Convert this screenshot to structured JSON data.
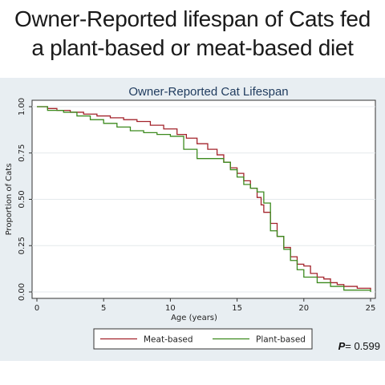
{
  "headline": {
    "line1": "Owner-Reported lifespan of Cats fed",
    "line2": "a plant-based or meat-based diet"
  },
  "p_value": {
    "label": "P",
    "text": "= 0.599"
  },
  "colors": {
    "panel_background": "#e8eef2",
    "plot_background": "#ffffff",
    "title_color": "#1f3b5e",
    "meat_based": "#a3232b",
    "plant_based": "#3c8a1e"
  },
  "chart_data": {
    "type": "line",
    "title": "Owner-Reported Cat Lifespan",
    "xlabel": "Age (years)",
    "ylabel": "Proportion of Cats",
    "xlim": [
      0,
      25
    ],
    "ylim": [
      0,
      1
    ],
    "xticks": [
      0,
      5,
      10,
      15,
      20,
      25
    ],
    "yticks": [
      0,
      0.25,
      0.5,
      0.75,
      1
    ],
    "ytick_labels": [
      "0.00",
      "0.25",
      "0.50",
      "0.75",
      "1.00"
    ],
    "grid": true,
    "legend_position": "bottom",
    "series": [
      {
        "name": "Meat-based",
        "color": "#a3232b",
        "x": [
          0,
          0.8,
          1.5,
          2.5,
          3.5,
          4.5,
          5.5,
          6.5,
          7.5,
          8.5,
          9.5,
          10.5,
          11.2,
          12,
          12.8,
          13.5,
          14,
          14.5,
          15,
          15.5,
          16,
          16.5,
          16.8,
          17,
          17.5,
          18,
          18.5,
          19,
          19.5,
          20,
          20.5,
          21,
          21.5,
          22,
          22.5,
          23,
          24,
          25
        ],
        "y": [
          1,
          0.99,
          0.98,
          0.97,
          0.96,
          0.95,
          0.94,
          0.93,
          0.92,
          0.9,
          0.88,
          0.85,
          0.83,
          0.8,
          0.77,
          0.74,
          0.7,
          0.67,
          0.64,
          0.6,
          0.56,
          0.51,
          0.47,
          0.43,
          0.37,
          0.3,
          0.24,
          0.19,
          0.15,
          0.14,
          0.1,
          0.08,
          0.07,
          0.05,
          0.04,
          0.03,
          0.02,
          0.01
        ]
      },
      {
        "name": "Plant-based",
        "color": "#3c8a1e",
        "x": [
          0,
          0.8,
          2,
          3,
          4,
          5,
          6,
          7,
          8,
          9,
          10,
          11,
          12,
          13,
          13.5,
          14,
          14.5,
          15,
          15.5,
          16,
          16.5,
          17,
          17.5,
          18,
          18.5,
          19,
          19.5,
          20,
          21,
          22,
          23,
          24,
          25
        ],
        "y": [
          1,
          0.98,
          0.97,
          0.95,
          0.93,
          0.91,
          0.89,
          0.87,
          0.86,
          0.85,
          0.84,
          0.77,
          0.72,
          0.72,
          0.72,
          0.7,
          0.66,
          0.62,
          0.58,
          0.56,
          0.54,
          0.48,
          0.33,
          0.3,
          0.23,
          0.17,
          0.12,
          0.08,
          0.05,
          0.03,
          0.01,
          0.01,
          0.0
        ]
      }
    ]
  }
}
